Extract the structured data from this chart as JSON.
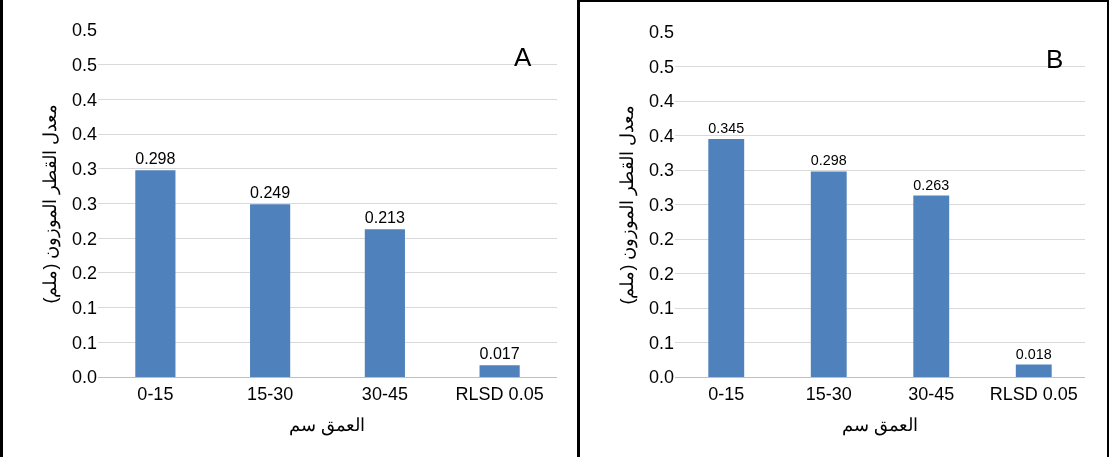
{
  "chart_data": [
    {
      "type": "bar",
      "categories": [
        "0-15",
        "15-30",
        "30-45",
        "RLSD 0.05"
      ],
      "values": [
        0.298,
        0.249,
        0.213,
        0.017
      ],
      "data_labels": true,
      "color": "#4f81bd",
      "xlabel": "العمق سم",
      "ylabel": "معدل القطر الموزون (ملم)",
      "annotations": [
        "A"
      ],
      "ylim": [
        0,
        0.5
      ],
      "yticks": [
        {
          "value": 0,
          "label": "0.0"
        },
        {
          "value": 0.05,
          "label": "0.1"
        },
        {
          "value": 0.1,
          "label": "0.1"
        },
        {
          "value": 0.15,
          "label": "0.2"
        },
        {
          "value": 0.2,
          "label": "0.2"
        },
        {
          "value": 0.25,
          "label": "0.3"
        },
        {
          "value": 0.3,
          "label": "0.3"
        },
        {
          "value": 0.35,
          "label": "0.4"
        },
        {
          "value": 0.4,
          "label": "0.4"
        },
        {
          "value": 0.45,
          "label": "0.5"
        },
        {
          "value": 0.5,
          "label": "0.5"
        }
      ],
      "grid": "y",
      "legend": false
    },
    {
      "type": "bar",
      "categories": [
        "0-15",
        "15-30",
        "30-45",
        "RLSD 0.05"
      ],
      "values": [
        0.345,
        0.298,
        0.263,
        0.018
      ],
      "data_labels": true,
      "color": "#4f81bd",
      "xlabel": "العمق سم",
      "ylabel": "معدل القطر الموزون (ملم)",
      "annotations": [
        "B"
      ],
      "ylim": [
        0,
        0.5
      ],
      "yticks": [
        {
          "value": 0,
          "label": "0.0"
        },
        {
          "value": 0.05,
          "label": "0.1"
        },
        {
          "value": 0.1,
          "label": "0.1"
        },
        {
          "value": 0.15,
          "label": "0.2"
        },
        {
          "value": 0.2,
          "label": "0.2"
        },
        {
          "value": 0.25,
          "label": "0.3"
        },
        {
          "value": 0.3,
          "label": "0.3"
        },
        {
          "value": 0.35,
          "label": "0.4"
        },
        {
          "value": 0.4,
          "label": "0.4"
        },
        {
          "value": 0.45,
          "label": "0.5"
        },
        {
          "value": 0.5,
          "label": "0.5"
        }
      ],
      "grid": "y",
      "legend": false
    }
  ]
}
